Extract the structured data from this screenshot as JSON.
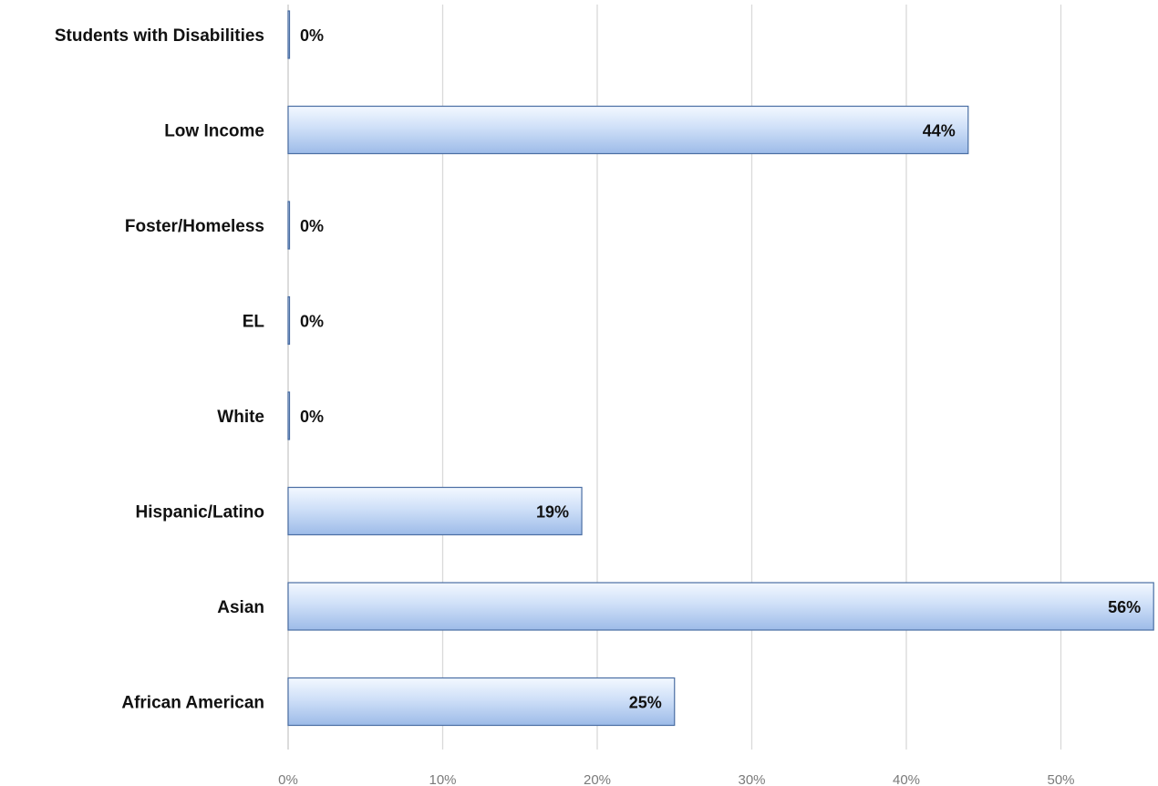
{
  "chart_data": {
    "type": "bar",
    "orientation": "horizontal",
    "categories": [
      "Students with Disabilities",
      "Low Income",
      "Foster/Homeless",
      "EL",
      "White",
      "Hispanic/Latino",
      "Asian",
      "African American"
    ],
    "values": [
      0,
      44,
      0,
      0,
      0,
      19,
      56,
      25
    ],
    "value_labels": [
      "0%",
      "44%",
      "0%",
      "0%",
      "0%",
      "19%",
      "56%",
      "25%"
    ],
    "xticks": [
      0,
      10,
      20,
      30,
      40,
      50
    ],
    "xtick_labels": [
      "0%",
      "10%",
      "20%",
      "30%",
      "40%",
      "50%"
    ],
    "xlim": [
      0,
      56
    ],
    "title": "",
    "xlabel": "",
    "ylabel": "",
    "grid": true,
    "legend": "none",
    "bar_color": "#c9dcf7",
    "bar_edge_color": "#4a6ea3"
  }
}
